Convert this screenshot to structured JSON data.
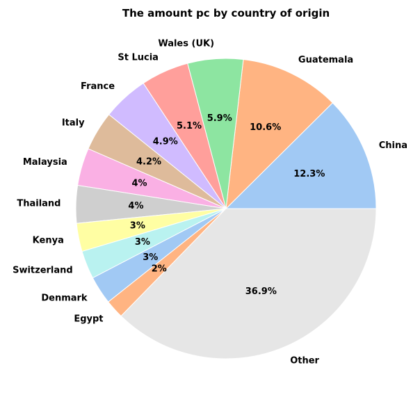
{
  "chart_data": {
    "type": "pie",
    "title": "The amount pc by country of origin",
    "slices": [
      {
        "label": "China",
        "value": 12.3,
        "pct_text": "12.3%",
        "color": "#a1c9f4"
      },
      {
        "label": "Guatemala",
        "value": 10.6,
        "pct_text": "10.6%",
        "color": "#ffb482"
      },
      {
        "label": "Wales (UK)",
        "value": 5.9,
        "pct_text": "5.9%",
        "color": "#8de5a1"
      },
      {
        "label": "St Lucia",
        "value": 5.1,
        "pct_text": "5.1%",
        "color": "#ff9f9b"
      },
      {
        "label": "France",
        "value": 4.9,
        "pct_text": "4.9%",
        "color": "#d0bbff"
      },
      {
        "label": "Italy",
        "value": 4.2,
        "pct_text": "4.2%",
        "color": "#debb9b"
      },
      {
        "label": "Malaysia",
        "value": 4.0,
        "pct_text": "4%",
        "color": "#fab0e4"
      },
      {
        "label": "Thailand",
        "value": 4.0,
        "pct_text": "4%",
        "color": "#cfcfcf"
      },
      {
        "label": "Kenya",
        "value": 3.0,
        "pct_text": "3%",
        "color": "#fffea3"
      },
      {
        "label": "Switzerland",
        "value": 3.0,
        "pct_text": "3%",
        "color": "#b9f2f0"
      },
      {
        "label": "Denmark",
        "value": 3.0,
        "pct_text": "3%",
        "color": "#a1c9f4"
      },
      {
        "label": "Egypt",
        "value": 2.0,
        "pct_text": "2%",
        "color": "#ffb482"
      },
      {
        "label": "Other",
        "value": 36.9,
        "pct_text": "36.9%",
        "color": "#e6e6e6"
      }
    ],
    "start_angle_deg": 0,
    "direction": "counterclockwise"
  }
}
